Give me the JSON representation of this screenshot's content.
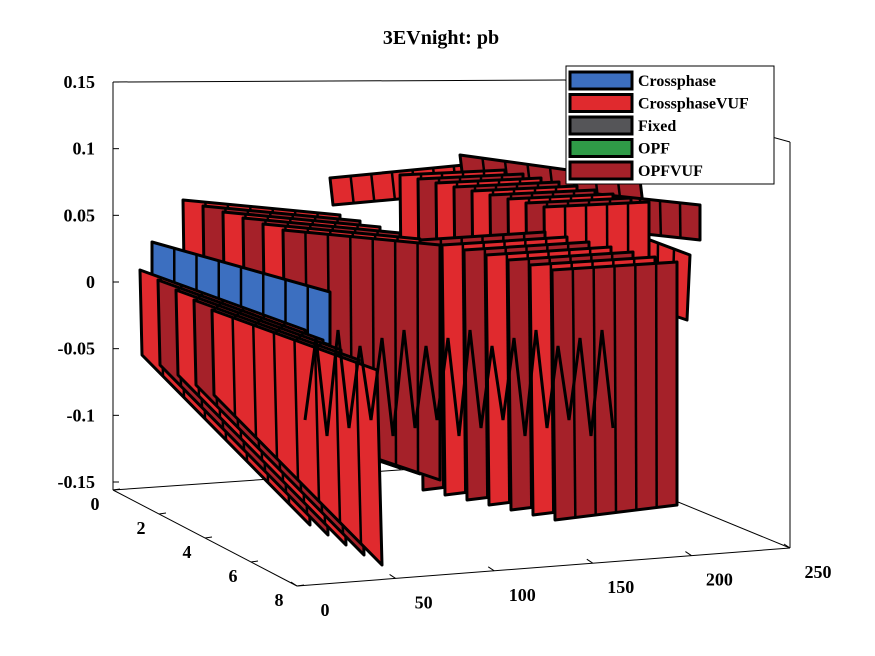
{
  "chart_data": {
    "type": "3d-surface",
    "title": "3EVnight: pb",
    "xlabel": "",
    "ylabel": "",
    "zlabel": "",
    "xlim": [
      0,
      250
    ],
    "ylim": [
      0,
      8
    ],
    "zlim": [
      -0.15,
      0.15
    ],
    "x_ticks": [
      "0",
      "50",
      "100",
      "150",
      "200",
      "250"
    ],
    "y_ticks": [
      "0",
      "2",
      "4",
      "6",
      "8"
    ],
    "z_ticks": [
      "0.15",
      "0.1",
      "0.05",
      "0",
      "-0.05",
      "-0.1",
      "-0.15"
    ],
    "legend_position": "top-right",
    "legend": [
      {
        "name": "Crossphase",
        "color": "#3c6fc0"
      },
      {
        "name": "CrossphaseVUF",
        "color": "#e02a2e"
      },
      {
        "name": "Fixed",
        "color": "#555558"
      },
      {
        "name": "OPF",
        "color": "#2f9a47"
      },
      {
        "name": "OPFVUF",
        "color": "#a52129"
      }
    ]
  }
}
